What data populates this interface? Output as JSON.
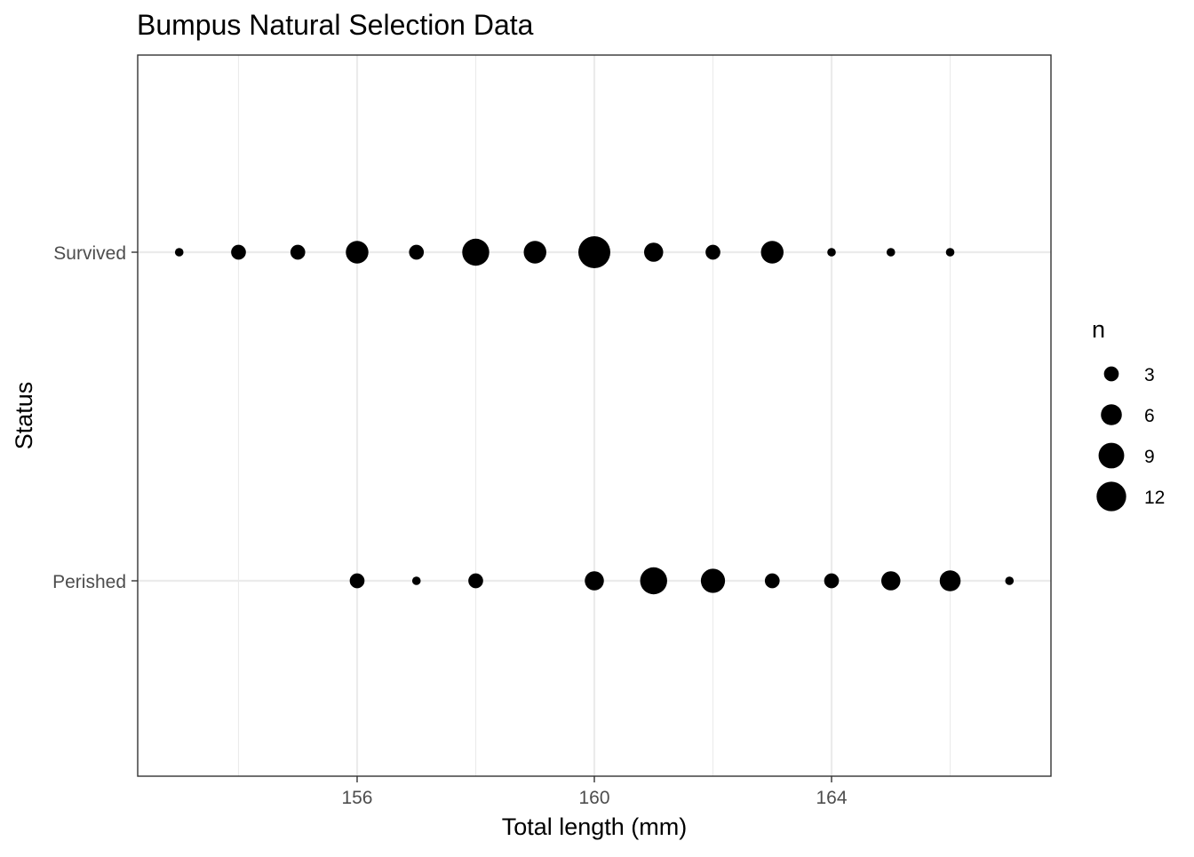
{
  "chart_data": {
    "type": "scatter",
    "title": "Bumpus Natural Selection Data",
    "xlabel": "Total length (mm)",
    "ylabel": "Status",
    "xlim": [
      152.3,
      167.7
    ],
    "x_ticks": [
      156,
      160,
      164
    ],
    "x_minor_grid": [
      154,
      158,
      162,
      166
    ],
    "categories": [
      "Perished",
      "Survived"
    ],
    "series": [
      {
        "category": "Survived",
        "points": [
          {
            "x": 153,
            "n": 1
          },
          {
            "x": 154,
            "n": 3
          },
          {
            "x": 155,
            "n": 3
          },
          {
            "x": 156,
            "n": 7
          },
          {
            "x": 157,
            "n": 3
          },
          {
            "x": 158,
            "n": 10
          },
          {
            "x": 159,
            "n": 7
          },
          {
            "x": 160,
            "n": 14
          },
          {
            "x": 161,
            "n": 5
          },
          {
            "x": 162,
            "n": 3
          },
          {
            "x": 163,
            "n": 7
          },
          {
            "x": 164,
            "n": 1
          },
          {
            "x": 165,
            "n": 1
          },
          {
            "x": 166,
            "n": 1
          }
        ]
      },
      {
        "category": "Perished",
        "points": [
          {
            "x": 156,
            "n": 3
          },
          {
            "x": 157,
            "n": 1
          },
          {
            "x": 158,
            "n": 3
          },
          {
            "x": 160,
            "n": 5
          },
          {
            "x": 161,
            "n": 10
          },
          {
            "x": 162,
            "n": 8
          },
          {
            "x": 163,
            "n": 3
          },
          {
            "x": 164,
            "n": 3
          },
          {
            "x": 165,
            "n": 5
          },
          {
            "x": 166,
            "n": 6
          },
          {
            "x": 167,
            "n": 1
          }
        ]
      }
    ],
    "size_legend": {
      "title": "n",
      "breaks": [
        3,
        6,
        9,
        12
      ]
    },
    "grid": true,
    "legend_position": "right",
    "colors": {
      "point": "#000000",
      "grid": "#ebebeb",
      "panel_border": "#333333",
      "axis_text": "#4d4d4d",
      "title_text": "#000000"
    }
  }
}
